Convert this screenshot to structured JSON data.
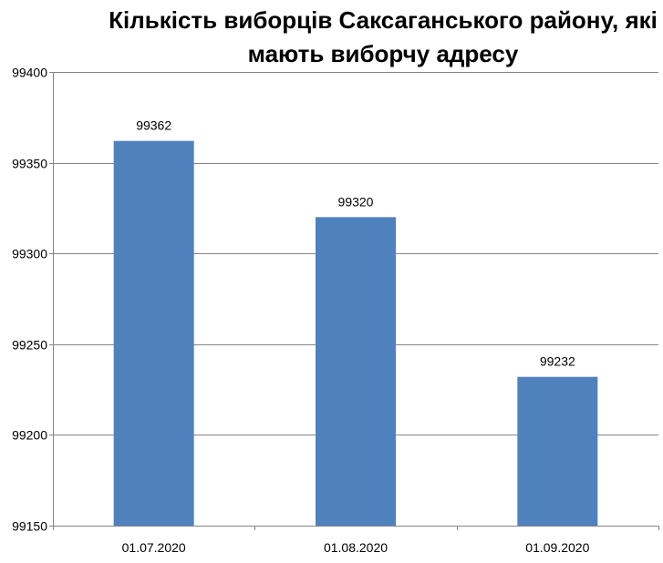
{
  "chart_data": {
    "type": "bar",
    "title_lines": [
      "Кількість виборців Саксаганського району, які",
      "мають виборчу адресу"
    ],
    "categories": [
      "01.07.2020",
      "01.08.2020",
      "01.09.2020"
    ],
    "values": [
      99362,
      99320,
      99232
    ],
    "data_labels": [
      "99362",
      "99320",
      "99232"
    ],
    "ylim": [
      99150,
      99400
    ],
    "yticks": [
      "99150",
      "99200",
      "99250",
      "99300",
      "99350",
      "99400"
    ],
    "ytick_values": [
      99150,
      99200,
      99250,
      99300,
      99350,
      99400
    ],
    "grid": true,
    "legend": "none",
    "bar_color": "#4F81BD",
    "grid_color": "#868686"
  }
}
